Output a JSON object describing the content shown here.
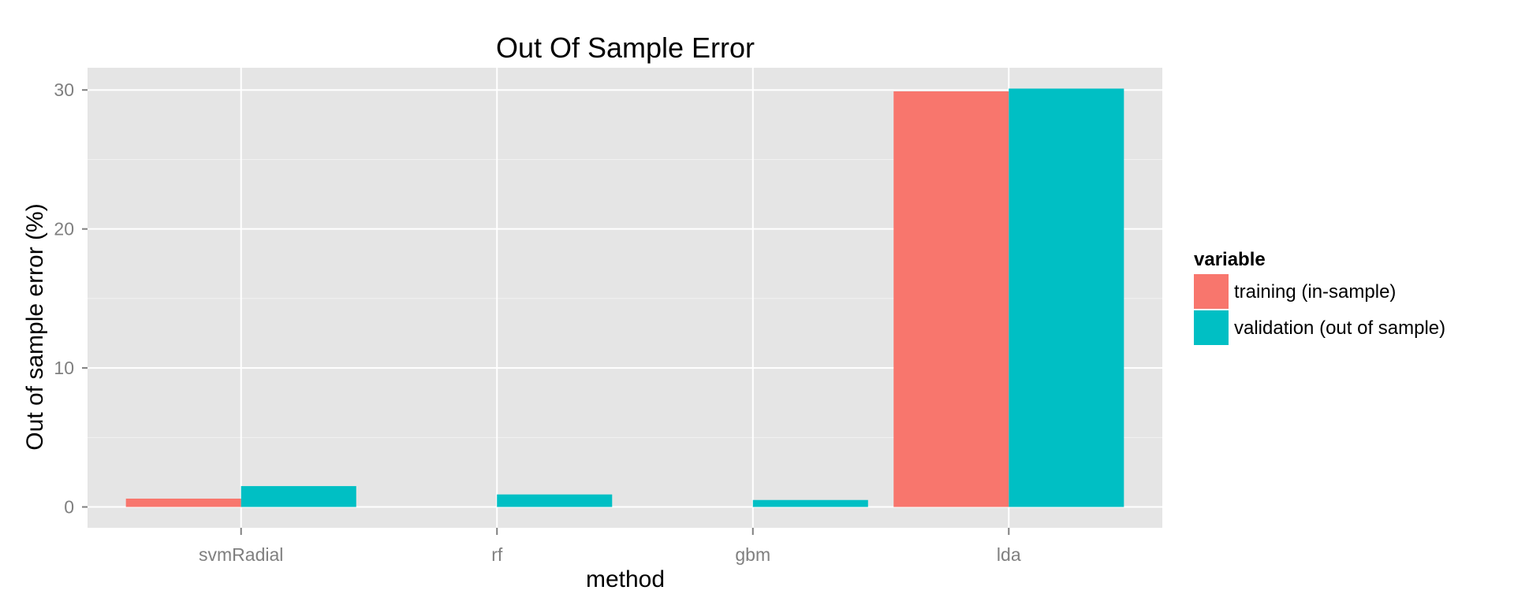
{
  "chart_data": {
    "type": "bar",
    "title": "Out Of Sample Error",
    "xlabel": "method",
    "ylabel": "Out of sample error (%)",
    "categories": [
      "svmRadial",
      "rf",
      "gbm",
      "lda"
    ],
    "series": [
      {
        "name": "training (in-sample)",
        "values": [
          0.6,
          0,
          0,
          29.9
        ],
        "color": "#F8766D"
      },
      {
        "name": "validation (out of sample)",
        "values": [
          1.5,
          0.9,
          0.5,
          30.1
        ],
        "color": "#00BFC4"
      }
    ],
    "yticks": [
      0,
      10,
      20,
      30
    ],
    "ylim": [
      -1.5,
      31.6
    ],
    "grid": true,
    "legend": {
      "title": "variable",
      "position": "right"
    },
    "colors": {
      "panel": "#E5E5E5",
      "grid_major": "#FFFFFF",
      "grid_minor": "#F2F2F2"
    }
  }
}
